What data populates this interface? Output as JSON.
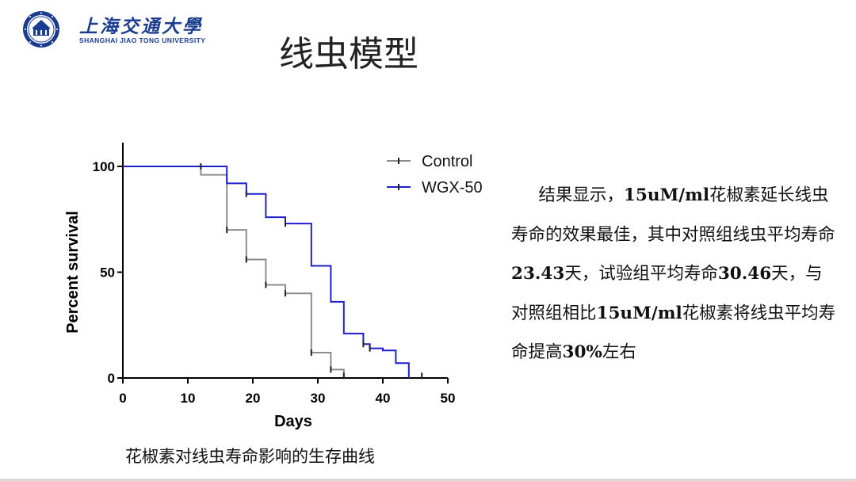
{
  "header": {
    "logo_cn": "上海交通大學",
    "logo_en": "SHANGHAI JIAO TONG UNIVERSITY",
    "title": "线虫模型"
  },
  "caption": "花椒素对线虫寿命影响的生存曲线",
  "result": {
    "parts": [
      {
        "text": "结果显示，",
        "bold": false
      },
      {
        "text": "15uM/ml",
        "bold": true
      },
      {
        "text": "花椒素延长线虫寿命的效果最佳，其中对照组线虫平均寿命",
        "bold": false
      },
      {
        "text": "23.43",
        "bold": true
      },
      {
        "text": "天，试验组平均寿命",
        "bold": false
      },
      {
        "text": "30.46",
        "bold": true
      },
      {
        "text": "天，与对照组相比",
        "bold": false
      },
      {
        "text": "15uM/ml",
        "bold": true
      },
      {
        "text": "花椒素将线虫平均寿命提高",
        "bold": false
      },
      {
        "text": "30%",
        "bold": true
      },
      {
        "text": "左右",
        "bold": false
      }
    ]
  },
  "colors": {
    "control": "#8c8c8c",
    "wgx": "#1f1fcc",
    "logo": "#1a3d8f"
  },
  "chart_data": {
    "type": "line",
    "subtype": "kaplan-meier step",
    "xlabel": "Days",
    "ylabel": "Percent survival",
    "xlim": [
      0,
      50
    ],
    "ylim": [
      0,
      100
    ],
    "xticks": [
      0,
      10,
      20,
      30,
      40,
      50
    ],
    "yticks": [
      0,
      50,
      100
    ],
    "legend": "top-right",
    "series": [
      {
        "name": "Control",
        "color": "#8c8c8c",
        "x": [
          0,
          12,
          16,
          19,
          22,
          25,
          29,
          32,
          34
        ],
        "y": [
          100,
          96,
          70,
          56,
          44,
          40,
          12,
          4,
          0
        ],
        "censor": [
          [
            16,
            70
          ],
          [
            19,
            56
          ],
          [
            22,
            44
          ],
          [
            25,
            40
          ],
          [
            29,
            12
          ],
          [
            32,
            4
          ],
          [
            34,
            1
          ]
        ]
      },
      {
        "name": "WGX-50",
        "color": "#1f1fcc",
        "x": [
          0,
          16,
          19,
          22,
          25,
          29,
          32,
          34,
          37,
          38,
          40,
          42,
          44
        ],
        "y": [
          100,
          92,
          87,
          76,
          73,
          53,
          36,
          21,
          16,
          14,
          13,
          7,
          0
        ],
        "censor": [
          [
            12,
            100
          ],
          [
            19,
            87
          ],
          [
            25,
            73
          ],
          [
            37,
            16
          ],
          [
            38,
            14
          ],
          [
            46,
            1
          ]
        ]
      }
    ]
  }
}
